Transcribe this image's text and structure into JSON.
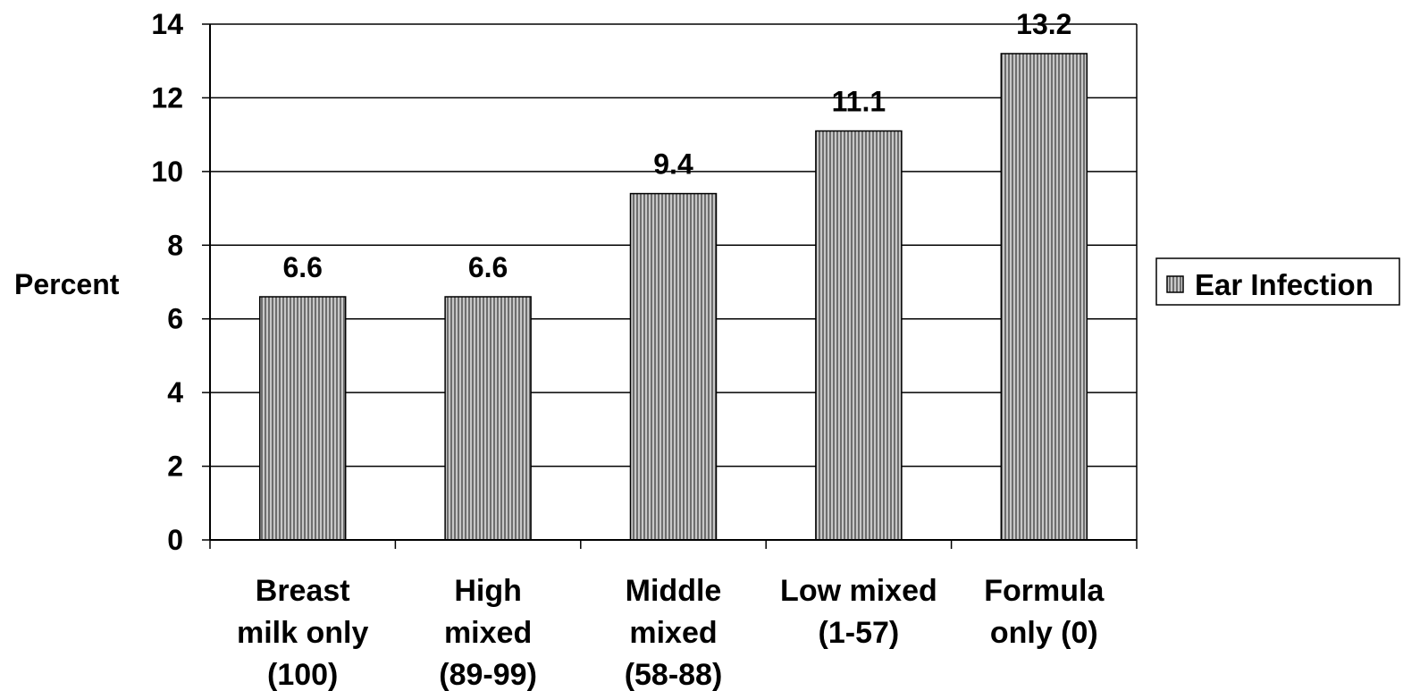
{
  "chart_data": {
    "type": "bar",
    "categories": [
      [
        "Breast",
        "milk only",
        "(100)"
      ],
      [
        "High",
        "mixed",
        "(89-99)"
      ],
      [
        "Middle",
        "mixed",
        "(58-88)"
      ],
      [
        "Low mixed",
        "(1-57)"
      ],
      [
        "Formula",
        "only (0)"
      ]
    ],
    "series": [
      {
        "name": "Ear Infection",
        "values": [
          6.6,
          6.6,
          9.4,
          11.1,
          13.2
        ]
      }
    ],
    "data_labels": [
      "6.6",
      "6.6",
      "9.4",
      "11.1",
      "13.2"
    ],
    "ylabel": "Percent",
    "xlabel": "",
    "title": "",
    "ylim": [
      0,
      14
    ],
    "yticks": [
      0,
      2,
      4,
      6,
      8,
      10,
      12,
      14
    ],
    "grid": "horizontal",
    "legend_position": "right",
    "bar_fill": "#a0a0a0",
    "bar_stroke": "#000000"
  }
}
